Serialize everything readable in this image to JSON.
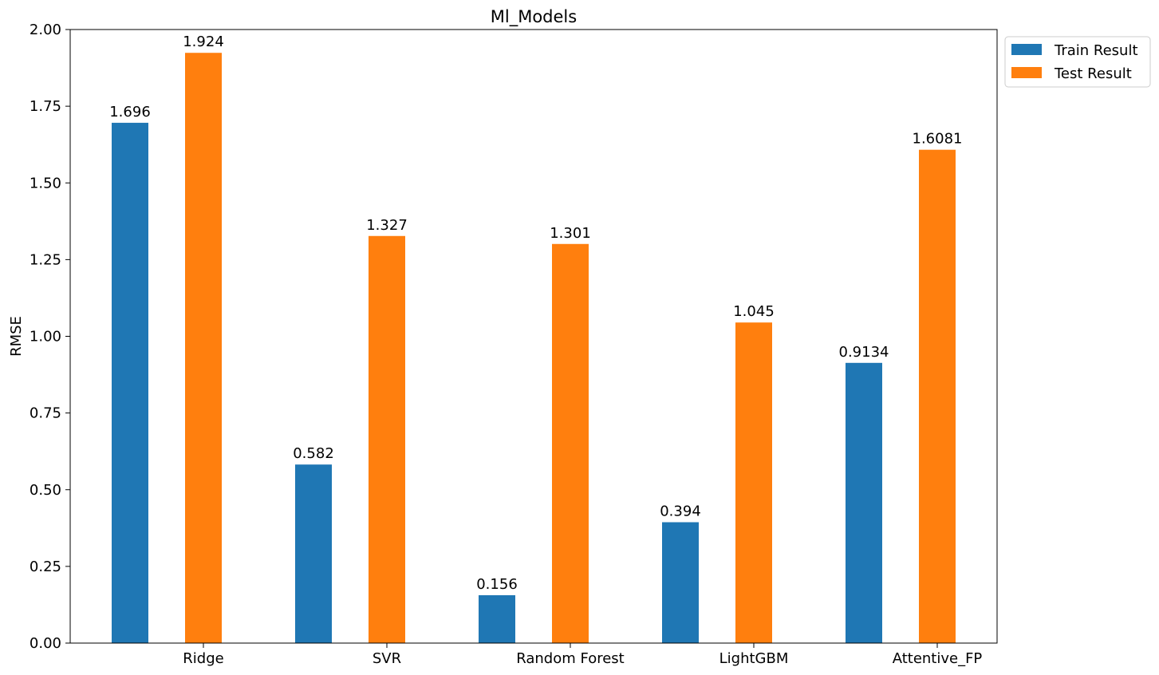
{
  "chart_data": {
    "type": "bar",
    "title": "Ml_Models",
    "xlabel": "",
    "ylabel": "RMSE",
    "ylim": [
      0,
      2.0
    ],
    "yticks": [
      "0.00",
      "0.25",
      "0.50",
      "0.75",
      "1.00",
      "1.25",
      "1.50",
      "1.75",
      "2.00"
    ],
    "categories": [
      "Ridge",
      "SVR",
      "Random Forest",
      "LightGBM",
      "Attentive_FP"
    ],
    "series": [
      {
        "name": "Train Result",
        "color": "#1f77b4",
        "values": [
          1.696,
          0.582,
          0.156,
          0.394,
          0.9134
        ],
        "labels": [
          "1.696",
          "0.582",
          "0.156",
          "0.394",
          "0.9134"
        ]
      },
      {
        "name": "Test Result",
        "color": "#ff7f0e",
        "values": [
          1.924,
          1.327,
          1.301,
          1.045,
          1.6081
        ],
        "labels": [
          "1.924",
          "1.327",
          "1.301",
          "1.045",
          "1.6081"
        ]
      }
    ],
    "grid": false,
    "legend": "upper right, outside plot"
  }
}
